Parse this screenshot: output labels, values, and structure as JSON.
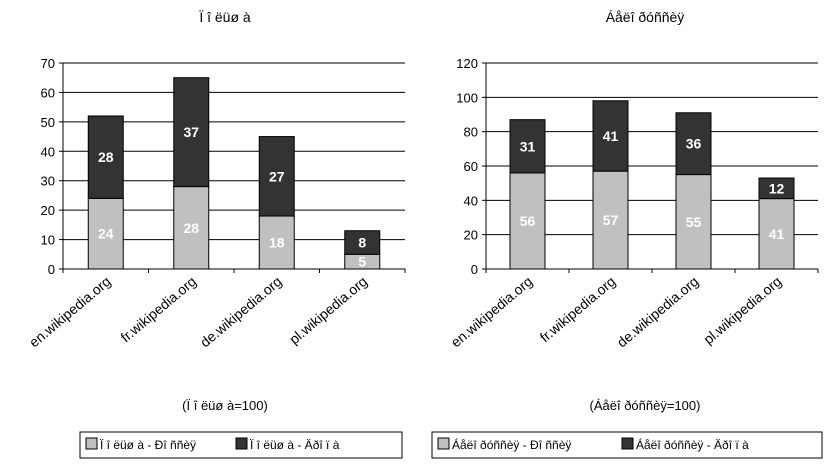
{
  "chart_data": [
    {
      "type": "bar",
      "stacked": true,
      "title": "Ï î ëüø à",
      "xlabel": "(Ï î ëüø à=100)",
      "categories": [
        "en.wikipedia.org",
        "fr.wikipedia.org",
        "de.wikipedia.org",
        "pl.wikipedia.org"
      ],
      "series": [
        {
          "name": "Ï î ëüø à - Ðî ññèÿ",
          "color": "#c0c0c0",
          "label_color": "#ffffff",
          "values": [
            24,
            28,
            18,
            5
          ]
        },
        {
          "name": "Ï î ëüø à  - Äðî ï à",
          "color": "#333333",
          "label_color": "#ffffff",
          "values": [
            28,
            37,
            27,
            8
          ]
        }
      ],
      "ylim": [
        0,
        70
      ],
      "yticks": [
        0,
        10,
        20,
        30,
        40,
        50,
        60,
        70
      ],
      "grid": true,
      "legend": "bottom"
    },
    {
      "type": "bar",
      "stacked": true,
      "title": "Áåëî ðóññèÿ",
      "xlabel": "(Áåëî ðóññèÿ=100)",
      "categories": [
        "en.wikipedia.org",
        "fr.wikipedia.org",
        "de.wikipedia.org",
        "pl.wikipedia.org"
      ],
      "series": [
        {
          "name": "Áåëî ðóññèÿ - Ðî ññèÿ",
          "color": "#c0c0c0",
          "label_color": "#ffffff",
          "values": [
            56,
            57,
            55,
            41
          ]
        },
        {
          "name": "Áåëî ðóññèÿ - Äðî ï à",
          "color": "#333333",
          "label_color": "#ffffff",
          "values": [
            31,
            41,
            36,
            12
          ]
        }
      ],
      "ylim": [
        0,
        120
      ],
      "yticks": [
        0,
        20,
        40,
        60,
        80,
        100,
        120
      ],
      "grid": true,
      "legend": "bottom"
    }
  ]
}
